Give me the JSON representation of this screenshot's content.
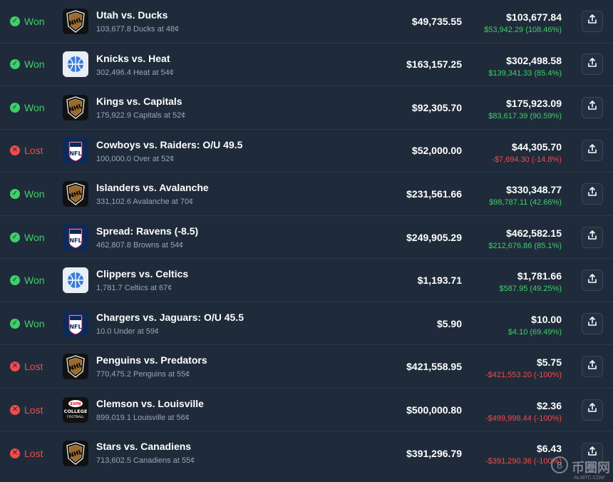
{
  "rows": [
    {
      "status": "Won",
      "logo": "nhl",
      "title": "Utah vs. Ducks",
      "sub": "103,677.8 Ducks at 48¢",
      "stake": "$49,735.55",
      "payout": "$103,677.84",
      "pnl": "$53,942.29 (108.46%)",
      "pnl_sign": "pos"
    },
    {
      "status": "Won",
      "logo": "nba",
      "title": "Knicks vs. Heat",
      "sub": "302,496.4 Heat at 54¢",
      "stake": "$163,157.25",
      "payout": "$302,498.58",
      "pnl": "$139,341.33 (85.4%)",
      "pnl_sign": "pos"
    },
    {
      "status": "Won",
      "logo": "nhl",
      "title": "Kings vs. Capitals",
      "sub": "175,922.9 Capitals at 52¢",
      "stake": "$92,305.70",
      "payout": "$175,923.09",
      "pnl": "$83,617.39 (90.59%)",
      "pnl_sign": "pos"
    },
    {
      "status": "Lost",
      "logo": "nfl",
      "title": "Cowboys vs. Raiders: O/U 49.5",
      "sub": "100,000.0 Over at 52¢",
      "stake": "$52,000.00",
      "payout": "$44,305.70",
      "pnl": "-$7,694.30 (-14.8%)",
      "pnl_sign": "neg"
    },
    {
      "status": "Won",
      "logo": "nhl",
      "title": "Islanders vs. Avalanche",
      "sub": "331,102.6 Avalanche at 70¢",
      "stake": "$231,561.66",
      "payout": "$330,348.77",
      "pnl": "$98,787.11 (42.66%)",
      "pnl_sign": "pos"
    },
    {
      "status": "Won",
      "logo": "nfl",
      "title": "Spread: Ravens (-8.5)",
      "sub": "462,807.8 Browns at 54¢",
      "stake": "$249,905.29",
      "payout": "$462,582.15",
      "pnl": "$212,676.86 (85.1%)",
      "pnl_sign": "pos"
    },
    {
      "status": "Won",
      "logo": "nba",
      "title": "Clippers vs. Celtics",
      "sub": "1,781.7 Celtics at 67¢",
      "stake": "$1,193.71",
      "payout": "$1,781.66",
      "pnl": "$587.95 (49.25%)",
      "pnl_sign": "pos"
    },
    {
      "status": "Won",
      "logo": "nfl",
      "title": "Chargers vs. Jaguars: O/U 45.5",
      "sub": "10.0 Under at 59¢",
      "stake": "$5.90",
      "payout": "$10.00",
      "pnl": "$4.10 (69.49%)",
      "pnl_sign": "pos"
    },
    {
      "status": "Lost",
      "logo": "nhl",
      "title": "Penguins vs. Predators",
      "sub": "770,475.2 Penguins at 55¢",
      "stake": "$421,558.95",
      "payout": "$5.75",
      "pnl": "-$421,553.20 (-100%)",
      "pnl_sign": "neg"
    },
    {
      "status": "Lost",
      "logo": "cfb",
      "title": "Clemson vs. Louisville",
      "sub": "899,019.1 Louisville at 56¢",
      "stake": "$500,000.80",
      "payout": "$2.36",
      "pnl": "-$499,998.44 (-100%)",
      "pnl_sign": "neg"
    },
    {
      "status": "Lost",
      "logo": "nhl",
      "title": "Stars vs. Canadiens",
      "sub": "713,602.5 Canadiens at 55¢",
      "stake": "$391,296.79",
      "payout": "$6.43",
      "pnl": "-$391,290.36 (-100%)",
      "pnl_sign": "neg"
    }
  ],
  "logo_text": {
    "nhl": "NHL",
    "nfl": "NFL",
    "cfb_top": "ESPN",
    "cfb_mid": "COLLEGE",
    "cfb_bot": "FOOTBALL"
  },
  "colors": {
    "won": "#3ecf6a",
    "lost": "#f04b4b",
    "background": "#1f2b3a"
  },
  "icons": {
    "won": "check-circle-icon",
    "lost": "x-circle-icon",
    "share": "share-upload-icon"
  },
  "watermark": {
    "text": "币圈网",
    "sub": "ALIBTC.COM"
  }
}
